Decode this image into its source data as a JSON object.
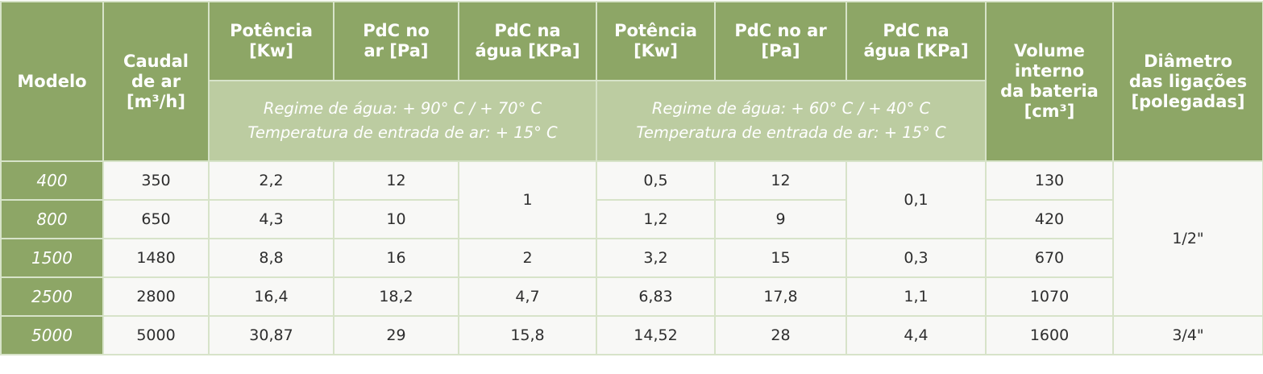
{
  "headers": {
    "modelo": "Modelo",
    "caudal": [
      "Caudal",
      "de ar",
      "[m³/h]"
    ],
    "potencia_1": [
      "Potência",
      "[Kw]"
    ],
    "pdc_ar_1": [
      "PdC no",
      "ar [Pa]"
    ],
    "pdc_agua_1": [
      "PdC na",
      "água [KPa]"
    ],
    "potencia_2": [
      "Potência",
      "[Kw]"
    ],
    "pdc_ar_2": [
      "PdC no ar",
      "[Pa]"
    ],
    "pdc_agua_2": [
      "PdC na",
      "água [KPa]"
    ],
    "volume": [
      "Volume",
      "interno",
      "da bateria",
      "[cm³]"
    ],
    "diametro": [
      "Diâmetro",
      "das ligações",
      "[polegadas]"
    ]
  },
  "regimes": [
    {
      "line1": "Regime de água: + 90° C / + 70° C",
      "line2": "Temperatura de entrada de ar: + 15° C"
    },
    {
      "line1": "Regime de água: + 60° C / + 40° C",
      "line2": "Temperatura de entrada de ar: + 15° C"
    }
  ],
  "rows": [
    {
      "modelo": "400",
      "caudal": "350",
      "pot1": "2,2",
      "ar1": "12",
      "pot2": "0,5",
      "ar2": "12",
      "vol": "130"
    },
    {
      "modelo": "800",
      "caudal": "650",
      "pot1": "4,3",
      "ar1": "10",
      "pot2": "1,2",
      "ar2": "9",
      "vol": "420"
    },
    {
      "modelo": "1500",
      "caudal": "1480",
      "pot1": "8,8",
      "ar1": "16",
      "agua1": "2",
      "pot2": "3,2",
      "ar2": "15",
      "agua2": "0,3",
      "vol": "670"
    },
    {
      "modelo": "2500",
      "caudal": "2800",
      "pot1": "16,4",
      "ar1": "18,2",
      "agua1": "4,7",
      "pot2": "6,83",
      "ar2": "17,8",
      "agua2": "1,1",
      "vol": "1070"
    },
    {
      "modelo": "5000",
      "caudal": "5000",
      "pot1": "30,87",
      "ar1": "29",
      "agua1": "15,8",
      "pot2": "14,52",
      "ar2": "28",
      "agua2": "4,4",
      "vol": "1600",
      "diam": "3/4\""
    }
  ],
  "merged": {
    "agua1_rows_400_800": "1",
    "agua2_rows_400_800": "0,1",
    "diam_rows_400_2500": "1/2\""
  }
}
